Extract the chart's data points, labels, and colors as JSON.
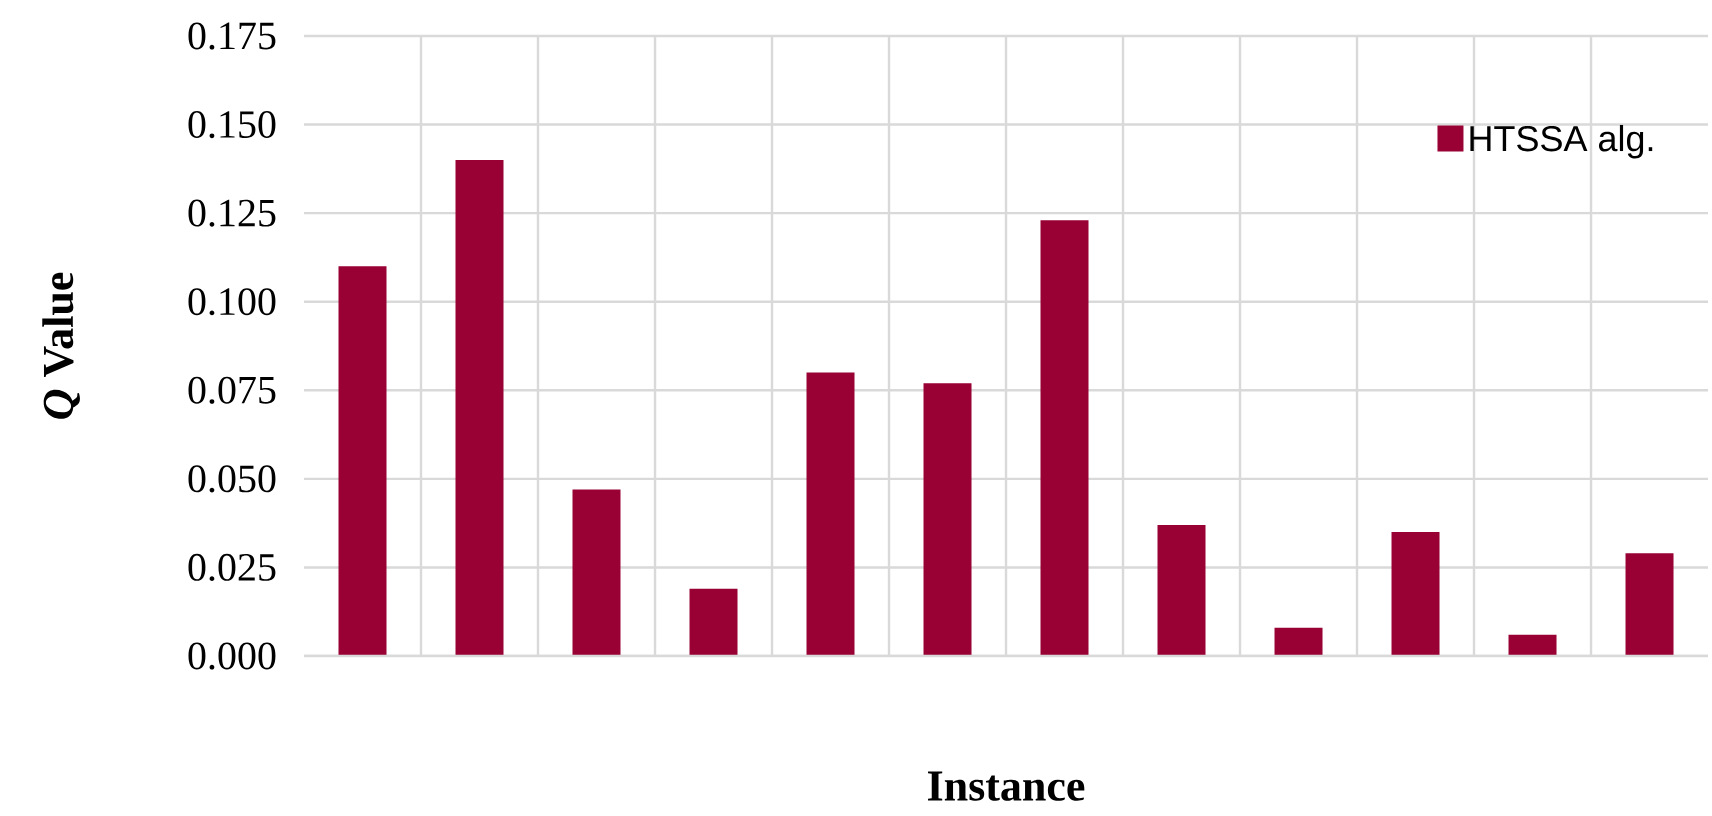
{
  "chart_data": {
    "type": "bar",
    "xlabel": "Instance",
    "ylabel": "*Q* Value",
    "categories": [
      null,
      null,
      null,
      null,
      null,
      null,
      null,
      null,
      null,
      null,
      null,
      null
    ],
    "series": [
      {
        "name": "HTSSA alg.",
        "color": "#990033",
        "values": [
          0.11,
          0.14,
          0.047,
          0.019,
          0.08,
          0.077,
          0.123,
          0.037,
          0.008,
          0.035,
          0.006,
          0.029
        ]
      }
    ],
    "ylim": [
      0,
      0.175
    ],
    "yticks": [
      {
        "value": 0,
        "label": "0.000"
      },
      {
        "value": 0.025,
        "label": "0.025"
      },
      {
        "value": 0.05,
        "label": "0.050"
      },
      {
        "value": 0.075,
        "label": "0.075"
      },
      {
        "value": 0.1,
        "label": "0.100"
      },
      {
        "value": 0.125,
        "label": "0.125"
      },
      {
        "value": 0.15,
        "label": "0.150"
      },
      {
        "value": 0.175,
        "label": "0.175"
      }
    ],
    "grid": true,
    "legend": "top right",
    "tick_labels": "y"
  }
}
